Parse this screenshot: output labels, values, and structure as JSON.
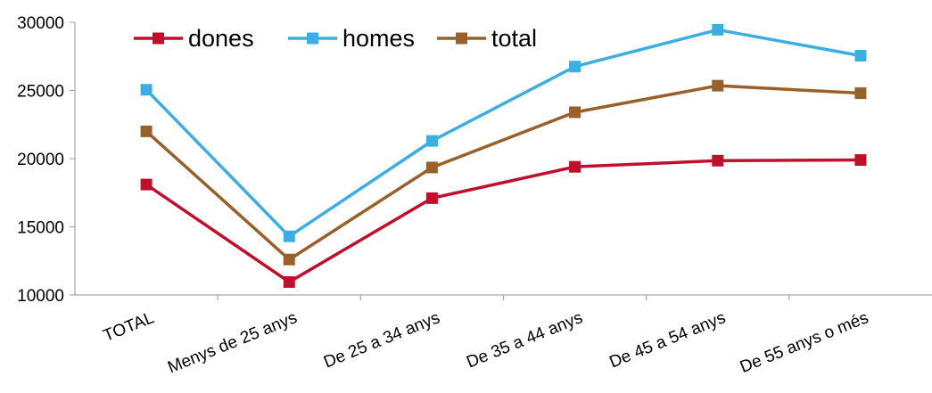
{
  "chart_data": {
    "type": "line",
    "title": "",
    "xlabel": "",
    "ylabel": "",
    "categories": [
      "TOTAL",
      "Menys de 25 anys",
      "De 25 a 34 anys",
      "De 35 a 44 anys",
      "De 45 a 54 anys",
      "De 55 anys o més"
    ],
    "ylim": [
      10000,
      30000
    ],
    "yticks": [
      10000,
      15000,
      20000,
      25000,
      30000
    ],
    "grid": false,
    "legend_position": "top-left",
    "series": [
      {
        "name": "dones",
        "color": "#c00f2c",
        "values": [
          18100,
          10950,
          17100,
          19400,
          19850,
          19900
        ]
      },
      {
        "name": "homes",
        "color": "#3daee0",
        "values": [
          25050,
          14300,
          21300,
          26750,
          29450,
          27550
        ]
      },
      {
        "name": "total",
        "color": "#98602b",
        "values": [
          22000,
          12600,
          19350,
          23400,
          25350,
          24800
        ]
      }
    ]
  }
}
